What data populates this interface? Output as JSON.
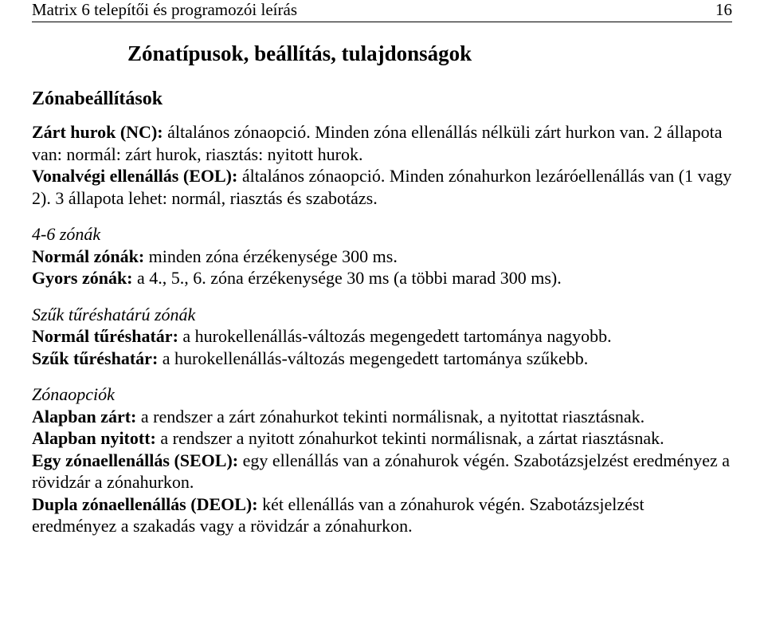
{
  "header": {
    "doc_title": "Matrix 6 telepítői és programozói leírás",
    "page_number": "16"
  },
  "title": "Zónatípusok, beállítás, tulajdonságok",
  "zonabeallitasok": {
    "heading": "Zónabeállítások",
    "zart_hurok_label": "Zárt hurok (NC):",
    "zart_hurok_text": " általános zónaopció. Minden zóna ellenállás nélküli zárt hurkon van. 2 állapota van: normál: zárt hurok, riasztás: nyitott hurok.",
    "vonalvegi_label": "Vonalvégi ellenállás (EOL):",
    "vonalvegi_text": " általános zónaopció. Minden zónahurkon lezáróellenállás van (1 vagy 2). 3 állapota lehet: normál, riasztás és szabotázs."
  },
  "zonak_46": {
    "heading": "4-6 zónák",
    "normal_label": "Normál zónák:",
    "normal_text": " minden zóna érzékenysége 300 ms.",
    "gyors_label": "Gyors zónák:",
    "gyors_text": " a 4., 5., 6. zóna érzékenysége 30 ms (a többi marad 300 ms)."
  },
  "szuk": {
    "heading": "Szűk tűréshatárú zónák",
    "normal_label": "Normál tűréshatár:",
    "normal_text": " a hurokellenállás-változás megengedett tartománya nagyobb.",
    "szuk_label": "Szűk tűréshatár:",
    "szuk_text": " a hurokellenállás-változás megengedett tartománya szűkebb."
  },
  "opciok": {
    "heading": "Zónaopciók",
    "zart_label": "Alapban zárt:",
    "zart_text": " a rendszer a zárt zónahurkot tekinti normálisnak, a nyitottat riasztásnak.",
    "nyitott_label": "Alapban nyitott:",
    "nyitott_text": " a rendszer a nyitott zónahurkot tekinti normálisnak, a zártat riasztásnak.",
    "seol_label": "Egy zónaellenállás (SEOL):",
    "seol_text": " egy ellenállás van a zónahurok végén. Szabotázsjelzést eredményez a rövidzár a zónahurkon.",
    "deol_label": "Dupla zónaellenállás (DEOL):",
    "deol_text": " két ellenállás van a zónahurok végén. Szabotázsjelzést eredményez a szakadás vagy a rövidzár a zónahurkon."
  }
}
